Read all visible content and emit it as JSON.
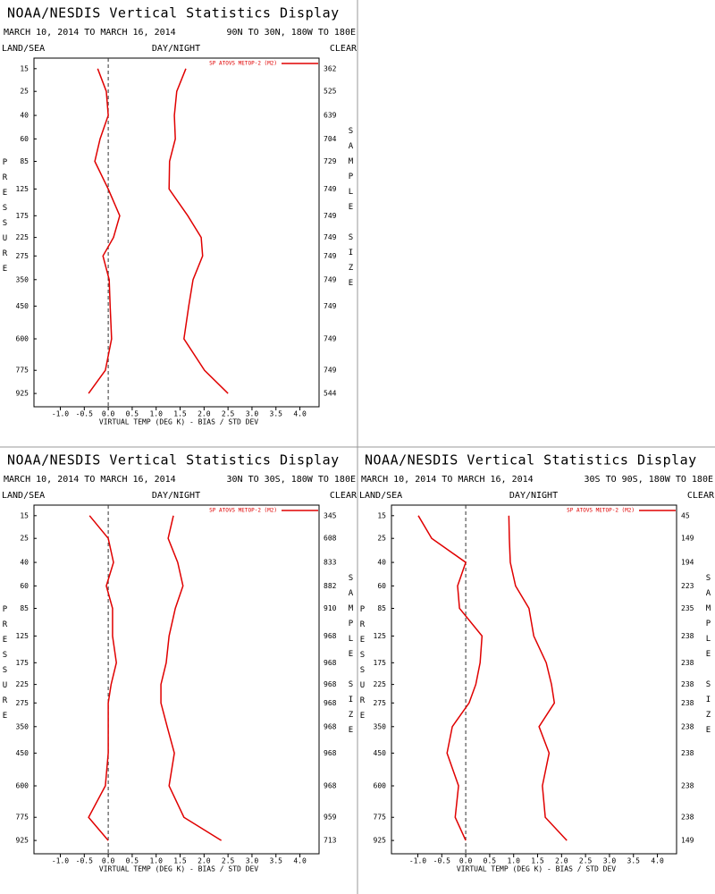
{
  "chart_data": [
    {
      "type": "profile",
      "title": "NOAA/NESDIS Vertical Statistics Display",
      "subtitle": "MARCH 10, 2014 TO MARCH 16, 2014",
      "region": "90N TO 30N, 180W TO 180E",
      "labels": [
        "LAND/SEA",
        "DAY/NIGHT",
        "CLEAR"
      ],
      "xlabel": "VIRTUAL TEMP (DEG K) - BIAS / STD DEV",
      "ylabel": "PRESSURE",
      "y2label": "SAMPLE SIZE",
      "y": [
        15,
        25,
        40,
        60,
        85,
        125,
        175,
        225,
        275,
        350,
        450,
        600,
        775,
        925
      ],
      "sample_size": [
        362,
        525,
        639,
        704,
        729,
        749,
        749,
        749,
        749,
        749,
        749,
        749,
        749,
        544
      ],
      "series": [
        {
          "name": "SP ATOVS METOP-2 (M2)",
          "color": "#e00000",
          "bias": [
            -0.22,
            -0.04,
            0.0,
            -0.17,
            -0.28,
            0.0,
            0.24,
            0.11,
            -0.11,
            0.02,
            0.04,
            0.07,
            -0.06,
            -0.41
          ],
          "std_dev": [
            1.62,
            1.43,
            1.38,
            1.4,
            1.28,
            1.27,
            1.66,
            1.94,
            1.97,
            1.77,
            1.68,
            1.58,
            2.01,
            2.5
          ]
        }
      ],
      "xlim": [
        -1.55,
        4.4
      ],
      "ylim": [
        1020,
        11.5
      ],
      "xticks": [
        {
          "value": -1,
          "label": "-1.0"
        },
        {
          "value": -0.5,
          "label": "-0.5"
        },
        {
          "value": 0,
          "label": "0.0"
        },
        {
          "value": 0.5,
          "label": "0.5"
        },
        {
          "value": 1,
          "label": "1.0"
        },
        1.5,
        {
          "value": 2,
          "label": "2.0"
        },
        2.5,
        {
          "value": 3,
          "label": "3.0"
        },
        3.5,
        {
          "value": 4,
          "label": "4.0"
        }
      ]
    },
    {
      "type": "profile",
      "title": "NOAA/NESDIS Vertical Statistics Display",
      "subtitle": "MARCH 10, 2014 TO MARCH 16, 2014",
      "region": "30N TO 30S, 180W TO 180E",
      "labels": [
        "LAND/SEA",
        "DAY/NIGHT",
        "CLEAR"
      ],
      "xlabel": "VIRTUAL TEMP (DEG K) - BIAS / STD DEV",
      "ylabel": "PRESSURE",
      "y2label": "SAMPLE SIZE",
      "y": [
        15,
        25,
        40,
        60,
        85,
        125,
        175,
        225,
        275,
        350,
        450,
        600,
        775,
        925
      ],
      "sample_size": [
        345,
        608,
        833,
        882,
        910,
        968,
        968,
        968,
        968,
        968,
        968,
        968,
        959,
        713
      ],
      "series": [
        {
          "name": "SP ATOVS METOP-2 (M2)",
          "color": "#e00000",
          "bias": [
            -0.39,
            0.0,
            0.11,
            -0.04,
            0.09,
            0.09,
            0.17,
            0.06,
            0.0,
            0.0,
            0.0,
            -0.06,
            -0.41,
            0.0
          ],
          "std_dev": [
            1.36,
            1.25,
            1.45,
            1.56,
            1.4,
            1.27,
            1.21,
            1.1,
            1.1,
            1.23,
            1.38,
            1.27,
            1.58,
            2.36
          ]
        }
      ],
      "xlim": [
        -1.55,
        4.4
      ],
      "ylim": [
        1020,
        11.5
      ],
      "xticks": [
        {
          "value": -1,
          "label": "-1.0"
        },
        {
          "value": -0.5,
          "label": "-0.5"
        },
        {
          "value": 0,
          "label": "0.0"
        },
        {
          "value": 0.5,
          "label": "0.5"
        },
        {
          "value": 1,
          "label": "1.0"
        },
        1.5,
        {
          "value": 2,
          "label": "2.0"
        },
        2.5,
        {
          "value": 3,
          "label": "3.0"
        },
        3.5,
        {
          "value": 4,
          "label": "4.0"
        }
      ]
    },
    {
      "type": "profile",
      "title": "NOAA/NESDIS Vertical Statistics Display",
      "subtitle": "MARCH 10, 2014 TO MARCH 16, 2014",
      "region": "30S TO 90S, 180W TO 180E",
      "labels": [
        "LAND/SEA",
        "DAY/NIGHT",
        "CLEAR"
      ],
      "xlabel": "VIRTUAL TEMP (DEG K) - BIAS / STD DEV",
      "ylabel": "PRESSURE",
      "y2label": "SAMPLE SIZE",
      "y": [
        15,
        25,
        40,
        60,
        85,
        125,
        175,
        225,
        275,
        350,
        450,
        600,
        775,
        925
      ],
      "sample_size": [
        45,
        149,
        194,
        223,
        235,
        238,
        238,
        238,
        238,
        238,
        238,
        238,
        238,
        149
      ],
      "series": [
        {
          "name": "SP ATOVS METOP-2 (M2)",
          "color": "#e00000",
          "bias": [
            -0.99,
            -0.71,
            0.0,
            -0.17,
            -0.13,
            0.34,
            0.3,
            0.21,
            0.07,
            -0.28,
            -0.39,
            -0.15,
            -0.22,
            0.0
          ],
          "std_dev": [
            0.9,
            0.91,
            0.93,
            1.04,
            1.32,
            1.42,
            1.68,
            1.79,
            1.85,
            1.53,
            1.74,
            1.6,
            1.66,
            2.11
          ]
        }
      ],
      "xlim": [
        -1.55,
        4.4
      ],
      "ylim": [
        1020,
        11.5
      ],
      "xticks": [
        {
          "value": -1,
          "label": "-1.0"
        },
        {
          "value": -0.5,
          "label": "-0.5"
        },
        {
          "value": 0,
          "label": "0.0"
        },
        {
          "value": 0.5,
          "label": "0.5"
        },
        {
          "value": 1,
          "label": "1.0"
        },
        1.5,
        {
          "value": 2,
          "label": "2.0"
        },
        2.5,
        {
          "value": 3,
          "label": "3.0"
        },
        3.5,
        {
          "value": 4,
          "label": "4.0"
        }
      ]
    }
  ]
}
